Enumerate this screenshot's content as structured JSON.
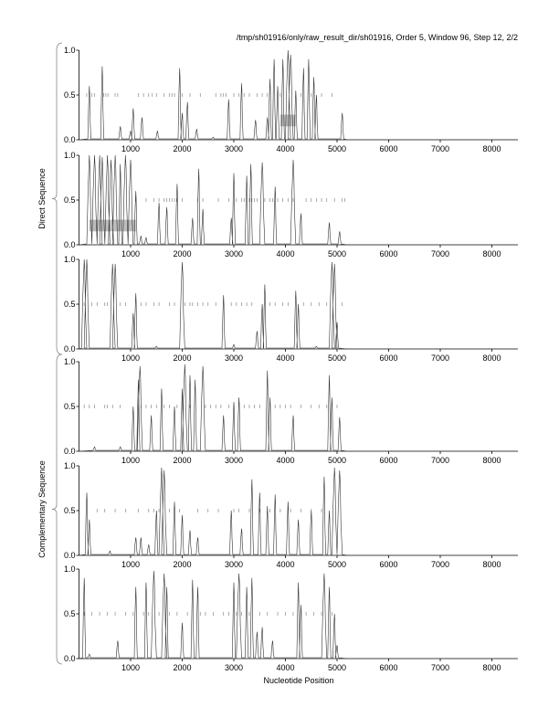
{
  "chart_data": {
    "type": "line",
    "title": "/tmp/sh01916/only/raw_result_dir/sh01916, Order 5, Window 96, Step 12, 2/2",
    "xlabel": "Nucleotide Position",
    "xlim": [
      0,
      8500
    ],
    "ylim": [
      0,
      1
    ],
    "xticks": [
      "1000",
      "2000",
      "3000",
      "4000",
      "5000",
      "6000",
      "7000",
      "8000"
    ],
    "yticks": [
      "0.0",
      "0.5",
      "1.0"
    ],
    "groups": [
      {
        "label": "Direct Sequence",
        "panels": [
          0,
          1,
          2
        ]
      },
      {
        "label": "Complementary Sequence",
        "panels": [
          3,
          4,
          5
        ]
      }
    ],
    "panels": [
      {
        "peaks": [
          [
            200,
            0.6
          ],
          [
            450,
            0.82
          ],
          [
            800,
            0.15
          ],
          [
            1000,
            0.1
          ],
          [
            1050,
            0.35
          ],
          [
            1220,
            0.25
          ],
          [
            1520,
            0.1
          ],
          [
            1950,
            0.8
          ],
          [
            2000,
            0.3
          ],
          [
            2100,
            0.42
          ],
          [
            2280,
            0.12
          ],
          [
            2600,
            0.03
          ],
          [
            2900,
            0.45
          ],
          [
            3150,
            0.63
          ],
          [
            3420,
            0.22
          ],
          [
            3650,
            0.25
          ],
          [
            3700,
            0.68
          ],
          [
            3780,
            0.9
          ],
          [
            3850,
            0.6
          ],
          [
            3950,
            0.9
          ],
          [
            4050,
            1.0
          ],
          [
            4100,
            0.95
          ],
          [
            4200,
            0.55
          ],
          [
            4350,
            0.8
          ],
          [
            4450,
            0.9
          ],
          [
            4550,
            0.7
          ],
          [
            4600,
            0.5
          ],
          [
            5100,
            0.3
          ]
        ],
        "ticks": [
          150,
          250,
          300,
          480,
          520,
          560,
          700,
          750,
          1150,
          1250,
          1350,
          1420,
          1500,
          1650,
          1750,
          1800,
          1850,
          2000,
          2150,
          2350,
          2650,
          2750,
          2800,
          2850,
          3000,
          3100,
          3200,
          3300,
          3450,
          3550,
          3650,
          3900,
          4300,
          4500,
          4700,
          4900
        ],
        "orf_box": [
          3900,
          4200,
          0.15,
          0.28
        ]
      },
      {
        "peaks": [
          [
            200,
            1
          ],
          [
            300,
            1
          ],
          [
            400,
            1
          ],
          [
            450,
            0.98
          ],
          [
            550,
            1
          ],
          [
            620,
            0.95
          ],
          [
            700,
            1
          ],
          [
            800,
            0.9
          ],
          [
            900,
            1
          ],
          [
            1000,
            0.95
          ],
          [
            1100,
            0.6
          ],
          [
            1200,
            0.1
          ],
          [
            1300,
            0.08
          ],
          [
            1550,
            0.47
          ],
          [
            1700,
            0.42
          ],
          [
            1900,
            0.68
          ],
          [
            2200,
            0.3
          ],
          [
            2320,
            0.85
          ],
          [
            2400,
            0.4
          ],
          [
            2950,
            0.3
          ],
          [
            3000,
            0.8
          ],
          [
            3250,
            0.77
          ],
          [
            3330,
            0.9
          ],
          [
            3550,
            0.92
          ],
          [
            3800,
            0.65
          ],
          [
            4150,
            0.95
          ],
          [
            4300,
            0.35
          ],
          [
            4850,
            0.25
          ],
          [
            5050,
            0.15
          ]
        ],
        "ticks": [
          1100,
          1300,
          1450,
          1550,
          1650,
          1700,
          1750,
          1800,
          1850,
          1900,
          2000,
          2300,
          2400,
          2700,
          2900,
          3050,
          3150,
          3200,
          3300,
          3350,
          3400,
          3450,
          3600,
          3700,
          3750,
          3850,
          3950,
          4050,
          4150,
          4400,
          4500,
          4600,
          4700,
          4800,
          4950,
          5100,
          5150
        ],
        "orf_box": [
          200,
          1100,
          0.15,
          0.28
        ]
      },
      {
        "peaks": [
          [
            100,
            1
          ],
          [
            150,
            1
          ],
          [
            650,
            0.95
          ],
          [
            700,
            0.95
          ],
          [
            1050,
            0.4
          ],
          [
            1100,
            0.62
          ],
          [
            1500,
            0.03
          ],
          [
            2000,
            0.97
          ],
          [
            2800,
            0.6
          ],
          [
            3000,
            0.05
          ],
          [
            3450,
            0.2
          ],
          [
            3550,
            0.5
          ],
          [
            3600,
            0.72
          ],
          [
            4200,
            0.65
          ],
          [
            4250,
            0.5
          ],
          [
            4600,
            0.03
          ],
          [
            4900,
            0.97
          ],
          [
            4950,
            0.95
          ],
          [
            5000,
            0.3
          ]
        ],
        "ticks": [
          100,
          250,
          350,
          500,
          550,
          800,
          900,
          1200,
          1300,
          1450,
          1550,
          1750,
          1850,
          2050,
          2150,
          2200,
          2300,
          2400,
          2500,
          2650,
          2950,
          3050,
          3150,
          3250,
          3350,
          3700,
          3800,
          3950,
          4050,
          4350,
          4500,
          4650,
          4800,
          5100
        ]
      },
      {
        "peaks": [
          [
            300,
            0.05
          ],
          [
            800,
            0.05
          ],
          [
            1050,
            0.5
          ],
          [
            1150,
            0.8
          ],
          [
            1180,
            0.95
          ],
          [
            1400,
            0.4
          ],
          [
            1600,
            0.7
          ],
          [
            1850,
            0.5
          ],
          [
            2000,
            0.7
          ],
          [
            2050,
            0.97
          ],
          [
            2150,
            0.85
          ],
          [
            2250,
            0.8
          ],
          [
            2400,
            0.95
          ],
          [
            2800,
            0.4
          ],
          [
            3000,
            0.55
          ],
          [
            3100,
            0.6
          ],
          [
            3650,
            0.9
          ],
          [
            3700,
            0.6
          ],
          [
            4150,
            0.4
          ],
          [
            4850,
            0.85
          ],
          [
            4900,
            0.6
          ],
          [
            5050,
            0.38
          ]
        ],
        "ticks": [
          100,
          200,
          300,
          500,
          550,
          650,
          800,
          1200,
          1300,
          1400,
          1500,
          1650,
          1750,
          1900,
          2150,
          2450,
          2550,
          2650,
          2750,
          2900,
          3200,
          3300,
          3400,
          3500,
          3800,
          3900,
          4000,
          4100,
          4300,
          4500,
          4650,
          4800,
          5000
        ]
      },
      {
        "peaks": [
          [
            150,
            0.7
          ],
          [
            200,
            0.4
          ],
          [
            600,
            0.05
          ],
          [
            1100,
            0.2
          ],
          [
            1200,
            0.2
          ],
          [
            1350,
            0.12
          ],
          [
            1500,
            0.5
          ],
          [
            1600,
            0.98
          ],
          [
            1650,
            0.95
          ],
          [
            1850,
            0.6
          ],
          [
            2000,
            0.45
          ],
          [
            2150,
            0.28
          ],
          [
            2300,
            0.2
          ],
          [
            2950,
            0.5
          ],
          [
            3150,
            0.3
          ],
          [
            3350,
            0.85
          ],
          [
            3500,
            0.7
          ],
          [
            3650,
            0.55
          ],
          [
            3800,
            0.68
          ],
          [
            4050,
            0.6
          ],
          [
            4250,
            0.4
          ],
          [
            4500,
            0.5
          ],
          [
            4750,
            0.88
          ],
          [
            4850,
            0.5
          ],
          [
            4950,
            0.98
          ],
          [
            5050,
            0.95
          ]
        ],
        "ticks": [
          350,
          500,
          700,
          900,
          1150,
          1350,
          1450,
          1550,
          1750,
          1950,
          2300,
          2500,
          2700,
          3000,
          3100,
          3300,
          3500,
          3700,
          3900,
          4100,
          4300,
          4500,
          4700
        ]
      },
      {
        "peaks": [
          [
            100,
            0.9
          ],
          [
            200,
            0.05
          ],
          [
            750,
            0.2
          ],
          [
            1100,
            0.8
          ],
          [
            1300,
            0.85
          ],
          [
            1450,
            0.98
          ],
          [
            1650,
            0.95
          ],
          [
            1700,
            0.8
          ],
          [
            2000,
            0.4
          ],
          [
            2200,
            0.88
          ],
          [
            2300,
            0.8
          ],
          [
            3000,
            0.85
          ],
          [
            3100,
            0.95
          ],
          [
            3250,
            0.8
          ],
          [
            3350,
            0.9
          ],
          [
            3450,
            0.3
          ],
          [
            3550,
            0.35
          ],
          [
            3750,
            0.2
          ],
          [
            4250,
            0.85
          ],
          [
            4300,
            0.6
          ],
          [
            4750,
            0.95
          ],
          [
            4850,
            0.8
          ],
          [
            4950,
            0.5
          ],
          [
            5000,
            0.15
          ]
        ],
        "ticks": [
          100,
          250,
          400,
          550,
          700,
          900,
          1050,
          1250,
          1350,
          1550,
          1750,
          1900,
          2100,
          2350,
          2450,
          2600,
          2800,
          2900,
          3050,
          3150,
          3300,
          3500,
          3650,
          3850,
          4000,
          4150,
          4400,
          4550,
          4700,
          4900
        ]
      }
    ]
  }
}
